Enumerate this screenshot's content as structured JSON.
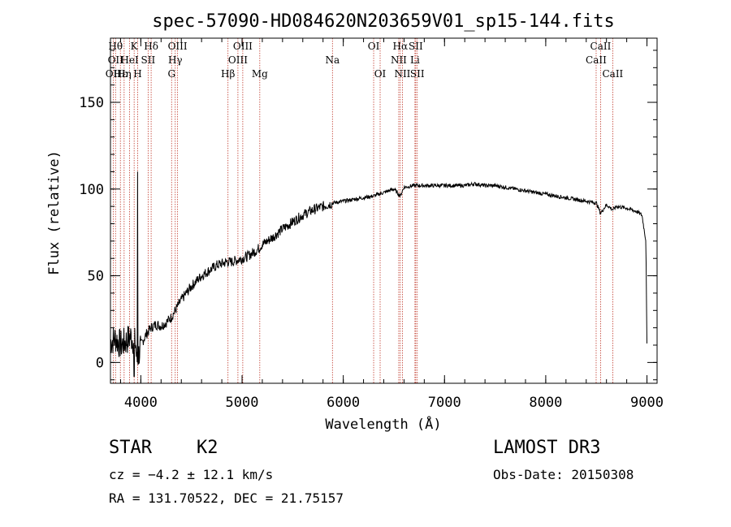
{
  "chart_data": {
    "type": "line",
    "title": "spec-57090-HD084620N203659V01_sp15-144.fits",
    "xlabel": "Wavelength (Å)",
    "ylabel": "Flux (relative)",
    "xlim": [
      3700,
      9100
    ],
    "ylim": [
      -12,
      187
    ],
    "xticks": [
      4000,
      5000,
      6000,
      7000,
      8000,
      9000
    ],
    "yticks": [
      0,
      50,
      100,
      150
    ],
    "series": [
      {
        "name": "flux",
        "x": [
          3700,
          3750,
          3800,
          3850,
          3900,
          3950,
          3960,
          4000,
          4050,
          4100,
          4150,
          4200,
          4250,
          4300,
          4350,
          4400,
          4450,
          4500,
          4550,
          4600,
          4650,
          4700,
          4750,
          4800,
          4850,
          4900,
          4950,
          5000,
          5050,
          5100,
          5150,
          5200,
          5300,
          5400,
          5500,
          5600,
          5700,
          5800,
          5900,
          6000,
          6100,
          6200,
          6300,
          6400,
          6500,
          6563,
          6600,
          6700,
          6800,
          6900,
          7000,
          7100,
          7200,
          7300,
          7400,
          7500,
          7600,
          7700,
          7800,
          7900,
          8000,
          8100,
          8200,
          8300,
          8400,
          8500,
          8542,
          8600,
          8662,
          8700,
          8800,
          8900,
          8950,
          8990,
          9000
        ],
        "y": [
          12,
          14,
          10,
          12,
          15,
          11,
          0,
          10,
          16,
          20,
          22,
          21,
          23,
          26,
          31,
          36,
          40,
          44,
          47,
          50,
          52,
          54,
          56,
          57,
          58,
          58,
          59,
          60,
          61,
          63,
          65,
          68,
          72,
          77,
          81,
          85,
          88,
          90,
          92,
          93,
          94,
          95,
          96,
          98,
          100,
          96,
          101,
          102,
          102,
          102,
          102,
          102,
          102,
          103,
          102,
          102,
          101,
          100,
          99,
          98,
          97,
          96,
          95,
          94,
          93,
          92,
          86,
          91,
          88,
          90,
          89,
          87,
          85,
          70,
          10
        ]
      }
    ],
    "line_markers": [
      {
        "wl": 3727,
        "labels": [
          "OII"
        ],
        "row": 2
      },
      {
        "wl": 3750,
        "labels": [
          "Hθ",
          "OII"
        ],
        "row": 0
      },
      {
        "wl": 3798,
        "labels": [
          "Hε"
        ],
        "row": 2
      },
      {
        "wl": 3835,
        "labels": [
          "Hη"
        ],
        "row": 2
      },
      {
        "wl": 3889,
        "labels": [
          "HeI"
        ],
        "row": 1
      },
      {
        "wl": 3934,
        "labels": [
          "K"
        ],
        "row": 0
      },
      {
        "wl": 3969,
        "labels": [
          "H"
        ],
        "row": 2
      },
      {
        "wl": 4072,
        "labels": [
          "SII"
        ],
        "row": 1
      },
      {
        "wl": 4102,
        "labels": [
          "Hδ"
        ],
        "row": 0
      },
      {
        "wl": 4304,
        "labels": [
          "G"
        ],
        "row": 2
      },
      {
        "wl": 4340,
        "labels": [
          "Hγ"
        ],
        "row": 1
      },
      {
        "wl": 4363,
        "labels": [
          "OIII"
        ],
        "row": 0
      },
      {
        "wl": 4861,
        "labels": [
          "Hβ"
        ],
        "row": 2
      },
      {
        "wl": 4959,
        "labels": [
          "OIII"
        ],
        "row": 1
      },
      {
        "wl": 5007,
        "labels": [
          "OIII"
        ],
        "row": 0
      },
      {
        "wl": 5175,
        "labels": [
          "Mg"
        ],
        "row": 2
      },
      {
        "wl": 5893,
        "labels": [
          "Na"
        ],
        "row": 1
      },
      {
        "wl": 6300,
        "labels": [
          "OI"
        ],
        "row": 0
      },
      {
        "wl": 6364,
        "labels": [
          "OI"
        ],
        "row": 2
      },
      {
        "wl": 6548,
        "labels": [
          "NII"
        ],
        "row": 1
      },
      {
        "wl": 6563,
        "labels": [
          "Hα"
        ],
        "row": 0
      },
      {
        "wl": 6584,
        "labels": [
          "NII"
        ],
        "row": 2
      },
      {
        "wl": 6708,
        "labels": [
          "Li"
        ],
        "row": 1
      },
      {
        "wl": 6716,
        "labels": [
          "SII"
        ],
        "row": 0
      },
      {
        "wl": 6731,
        "labels": [
          "SII"
        ],
        "row": 2
      },
      {
        "wl": 8498,
        "labels": [
          "CaII"
        ],
        "row": 1
      },
      {
        "wl": 8542,
        "labels": [
          "CaII"
        ],
        "row": 0
      },
      {
        "wl": 8662,
        "labels": [
          "CaII"
        ],
        "row": 2
      }
    ]
  },
  "info": {
    "class": "STAR",
    "subclass": "K2",
    "survey": "LAMOST DR3",
    "cz": "cz = −4.2 ± 12.1 km/s",
    "obs_date": "Obs-Date: 20150308",
    "coords": "RA = 131.70522, DEC =  21.75157"
  },
  "colors": {
    "marker": "#c0392b",
    "line": "#000000"
  }
}
